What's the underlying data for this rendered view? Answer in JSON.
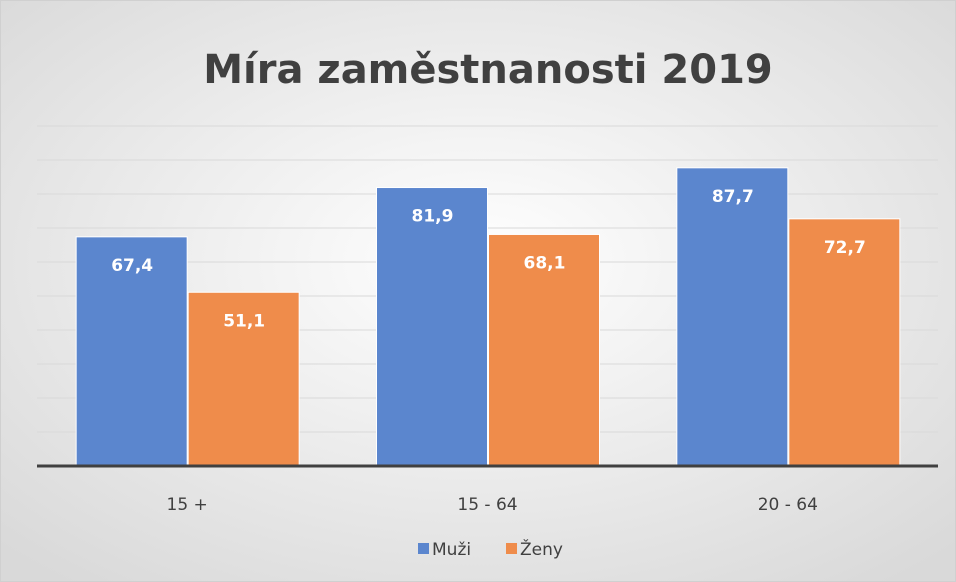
{
  "chart_data": {
    "type": "bar",
    "title": "Míra zaměstnanosti 2019",
    "categories": [
      "15 +",
      "15 - 64",
      "20 - 64"
    ],
    "series": [
      {
        "name": "Muži",
        "color": "#5b86ce",
        "values": [
          67.4,
          81.9,
          87.7
        ],
        "value_labels": [
          "67,4",
          "81,9",
          "87,7"
        ]
      },
      {
        "name": "Ženy",
        "color": "#ef8c4b",
        "values": [
          51.1,
          68.1,
          72.7
        ],
        "value_labels": [
          "51,1",
          "68,1",
          "72,7"
        ]
      }
    ],
    "ylim": [
      0,
      100
    ],
    "yticks": [
      0,
      10,
      20,
      30,
      40,
      50,
      60,
      70,
      80,
      90,
      100
    ],
    "grid": true,
    "legend": "bottom"
  }
}
